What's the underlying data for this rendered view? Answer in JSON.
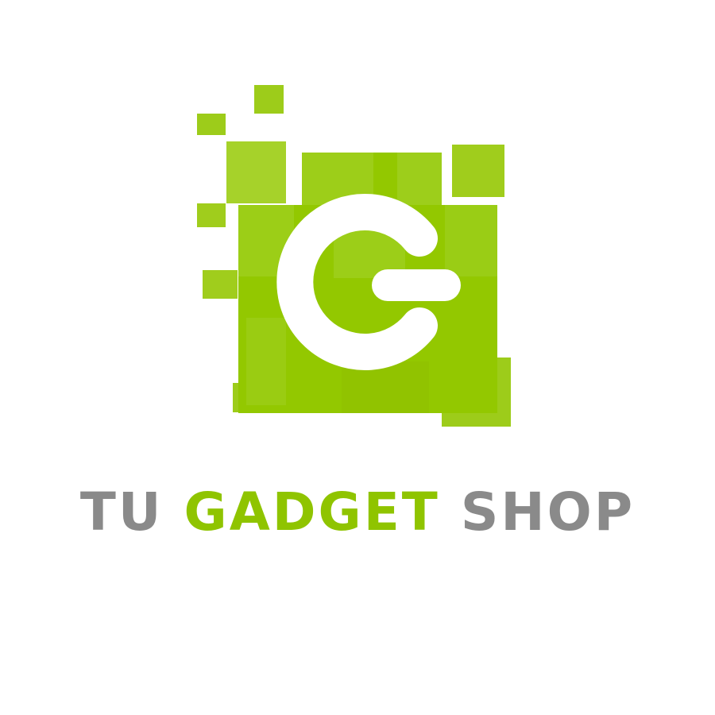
{
  "brand": {
    "word_1": "TU",
    "word_2": "GADGET",
    "word_3": "SHOP",
    "accent_color": "#8fc400",
    "neutral_color": "#8a8a8a",
    "background_color": "#ffffff"
  },
  "mark": {
    "letter": "G",
    "icon": "pixel-square-g-icon"
  }
}
